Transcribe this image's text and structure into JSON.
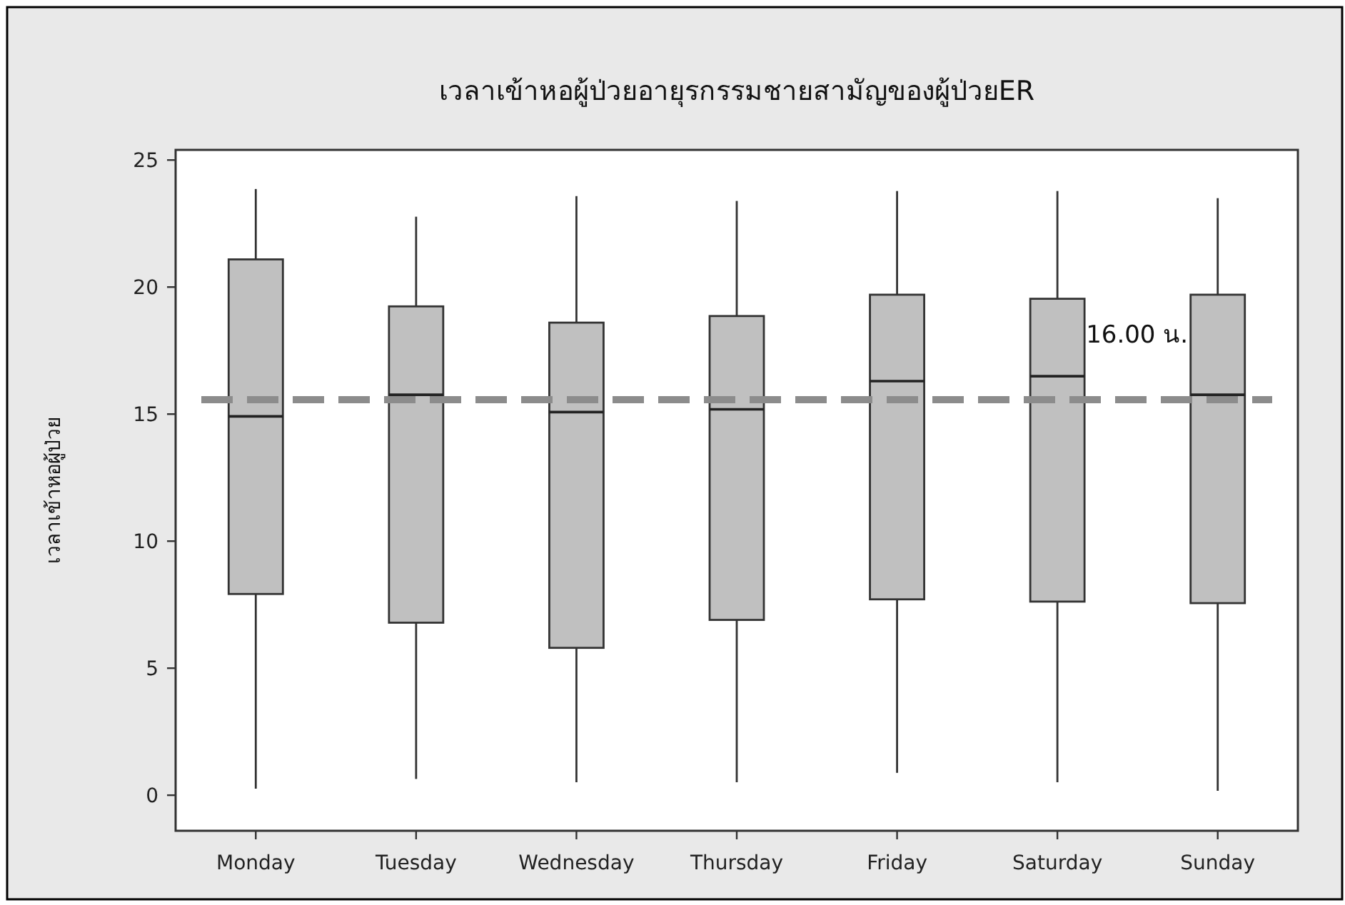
{
  "chart_data": {
    "type": "box",
    "title": "เวลาเข้าหอผู้ป่วยอายุรกรรมชายสามัญของผู้ป่วยER",
    "ylabel": "เวลาเข้าหอผู้ป่วย",
    "categories": [
      "Monday",
      "Tuesday",
      "Wednesday",
      "Thursday",
      "Friday",
      "Saturday",
      "Sunday"
    ],
    "boxes": [
      {
        "low": 0.26,
        "q1": 7.92,
        "median": 14.91,
        "q3": 21.09,
        "high": 23.86
      },
      {
        "low": 0.64,
        "q1": 6.79,
        "median": 15.76,
        "q3": 19.24,
        "high": 22.77
      },
      {
        "low": 0.51,
        "q1": 5.8,
        "median": 15.08,
        "q3": 18.6,
        "high": 23.58
      },
      {
        "low": 0.51,
        "q1": 6.9,
        "median": 15.19,
        "q3": 18.86,
        "high": 23.39
      },
      {
        "low": 0.88,
        "q1": 7.71,
        "median": 16.3,
        "q3": 19.7,
        "high": 23.78
      },
      {
        "low": 0.51,
        "q1": 7.62,
        "median": 16.49,
        "q3": 19.54,
        "high": 23.78
      },
      {
        "low": 0.17,
        "q1": 7.56,
        "median": 15.76,
        "q3": 19.7,
        "high": 23.5
      }
    ],
    "color": "#c0c0c0",
    "ylim": [
      -1.4,
      25.4
    ],
    "yticks": [
      0,
      5,
      10,
      15,
      20,
      25
    ],
    "ref_lines": [
      {
        "axis": "y",
        "value": 15.57,
        "label": "16.00 น.",
        "color": "#8c8c8c",
        "line_style": "dashed"
      }
    ],
    "grid": false
  }
}
